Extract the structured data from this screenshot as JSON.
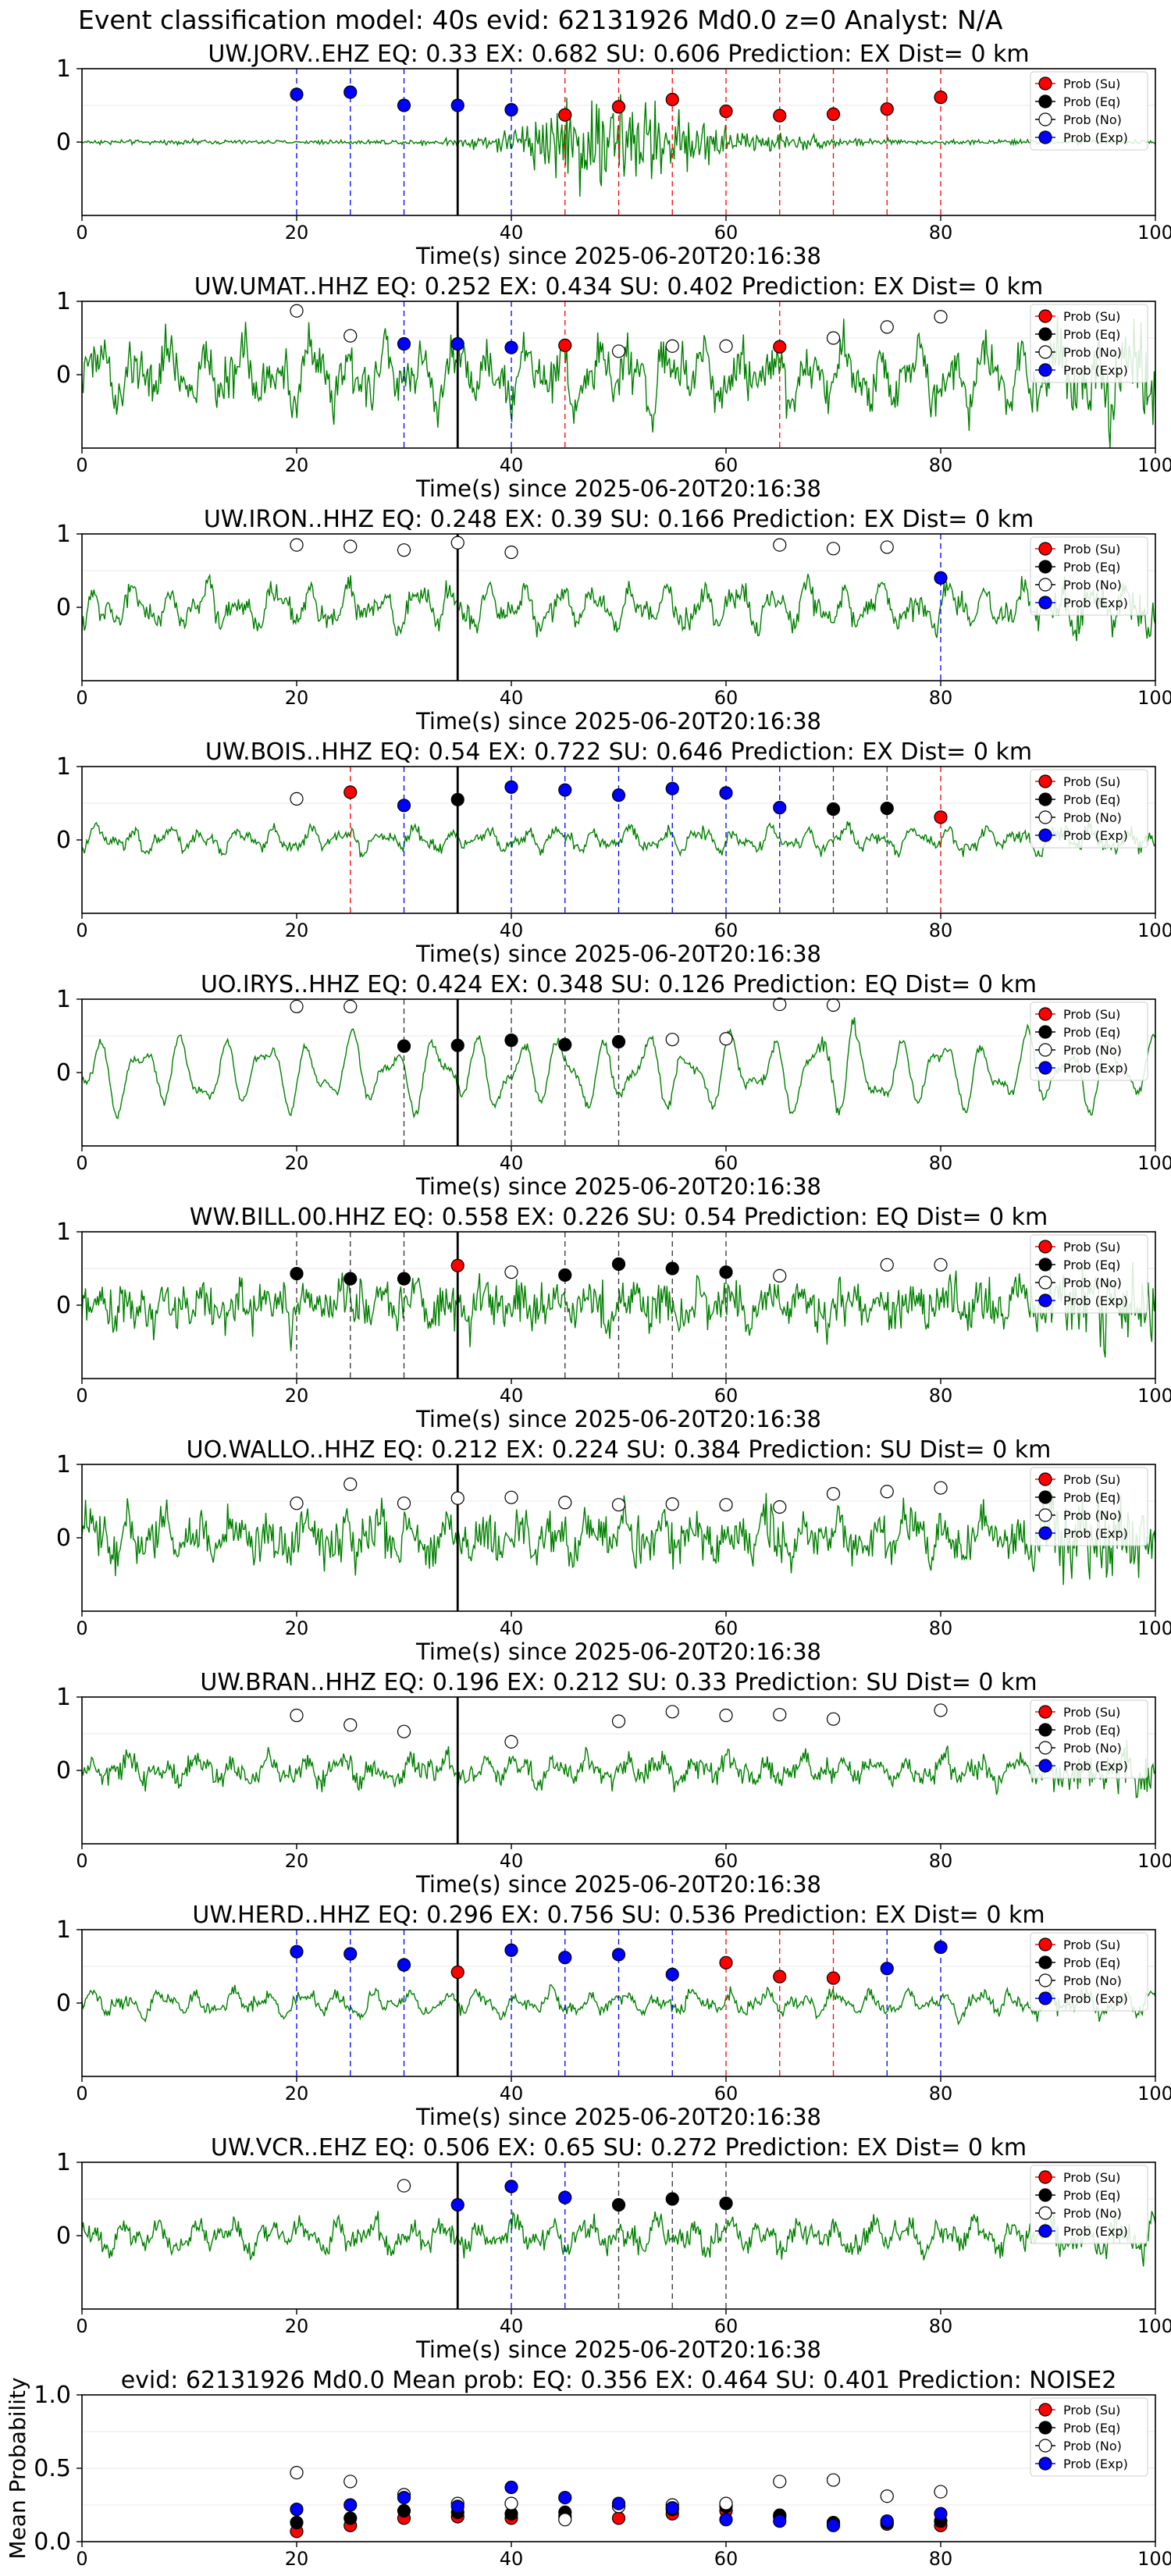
{
  "suptitle": "Event classification model: 40s evid: 62131926 Md0.0 z=0 Analyst: N/A",
  "xlabel_text": "Time(s) since 2025-06-20T20:16:38",
  "legend_labels": [
    "Prob (Su)",
    "Prob (Eq)",
    "Prob (No)",
    "Prob (Exp)"
  ],
  "colors": {
    "su": "#ff0000",
    "eq": "#000000",
    "no": "#ffffff",
    "exp": "#0000ff",
    "trace": "#008000",
    "mean_ylabel": "Mean Probability"
  },
  "chart_data": [
    {
      "type": "line",
      "title": "UW.JORV..EHZ   EQ: 0.33  EX: 0.682  SU: 0.606   Prediction: EX    Dist= 0 km",
      "xlabel": "Time(s) since 2025-06-20T20:16:38",
      "ylabel": "",
      "xlim": [
        0,
        100
      ],
      "ylim": [
        -1,
        1
      ],
      "xticks": [
        0,
        20,
        40,
        60,
        80,
        100
      ],
      "yticks": [
        0,
        1
      ],
      "pick_time": 35,
      "waveform": "burst",
      "waveform_amplitude": 1.0,
      "waveform_noise": 0.03,
      "points": [
        {
          "t": 20,
          "p": 0.65,
          "cls": "exp"
        },
        {
          "t": 25,
          "p": 0.68,
          "cls": "exp"
        },
        {
          "t": 30,
          "p": 0.5,
          "cls": "exp"
        },
        {
          "t": 35,
          "p": 0.5,
          "cls": "exp"
        },
        {
          "t": 40,
          "p": 0.44,
          "cls": "exp"
        },
        {
          "t": 45,
          "p": 0.37,
          "cls": "su"
        },
        {
          "t": 50,
          "p": 0.48,
          "cls": "su"
        },
        {
          "t": 55,
          "p": 0.58,
          "cls": "su"
        },
        {
          "t": 60,
          "p": 0.42,
          "cls": "su"
        },
        {
          "t": 65,
          "p": 0.36,
          "cls": "su"
        },
        {
          "t": 70,
          "p": 0.38,
          "cls": "su"
        },
        {
          "t": 75,
          "p": 0.45,
          "cls": "su"
        },
        {
          "t": 80,
          "p": 0.61,
          "cls": "su"
        }
      ]
    },
    {
      "type": "line",
      "title": "UW.UMAT..HHZ   EQ: 0.252  EX: 0.434  SU: 0.402   Prediction: EX    Dist= 0 km",
      "xlabel": "Time(s) since 2025-06-20T20:16:38",
      "ylabel": "",
      "xlim": [
        0,
        100
      ],
      "ylim": [
        -1,
        1
      ],
      "xticks": [
        0,
        20,
        40,
        60,
        80,
        100
      ],
      "yticks": [
        0,
        1
      ],
      "pick_time": 35,
      "waveform": "noise",
      "waveform_amplitude": 0.5,
      "waveform_noise": 0.3,
      "points": [
        {
          "t": 20,
          "p": 0.87,
          "cls": "no"
        },
        {
          "t": 25,
          "p": 0.53,
          "cls": "no"
        },
        {
          "t": 30,
          "p": 0.42,
          "cls": "exp"
        },
        {
          "t": 35,
          "p": 0.42,
          "cls": "exp"
        },
        {
          "t": 40,
          "p": 0.37,
          "cls": "exp"
        },
        {
          "t": 45,
          "p": 0.4,
          "cls": "su"
        },
        {
          "t": 50,
          "p": 0.32,
          "cls": "no"
        },
        {
          "t": 55,
          "p": 0.39,
          "cls": "no"
        },
        {
          "t": 60,
          "p": 0.39,
          "cls": "no"
        },
        {
          "t": 65,
          "p": 0.38,
          "cls": "su"
        },
        {
          "t": 70,
          "p": 0.5,
          "cls": "no"
        },
        {
          "t": 75,
          "p": 0.65,
          "cls": "no"
        },
        {
          "t": 80,
          "p": 0.79,
          "cls": "no"
        }
      ]
    },
    {
      "type": "line",
      "title": "UW.IRON..HHZ   EQ: 0.248  EX: 0.39  SU: 0.166   Prediction: EX    Dist= 0 km",
      "xlabel": "Time(s) since 2025-06-20T20:16:38",
      "ylabel": "",
      "xlim": [
        0,
        100
      ],
      "ylim": [
        -1,
        1
      ],
      "xticks": [
        0,
        20,
        40,
        60,
        80,
        100
      ],
      "yticks": [
        0,
        1
      ],
      "pick_time": 35,
      "waveform": "noise",
      "waveform_amplitude": 0.35,
      "waveform_noise": 0.15,
      "points": [
        {
          "t": 20,
          "p": 0.85,
          "cls": "no"
        },
        {
          "t": 25,
          "p": 0.83,
          "cls": "no"
        },
        {
          "t": 30,
          "p": 0.78,
          "cls": "no"
        },
        {
          "t": 35,
          "p": 0.88,
          "cls": "no"
        },
        {
          "t": 40,
          "p": 0.75,
          "cls": "no"
        },
        {
          "t": 65,
          "p": 0.85,
          "cls": "no"
        },
        {
          "t": 70,
          "p": 0.8,
          "cls": "no"
        },
        {
          "t": 75,
          "p": 0.82,
          "cls": "no"
        },
        {
          "t": 80,
          "p": 0.4,
          "cls": "exp"
        }
      ]
    },
    {
      "type": "line",
      "title": "UW.BOIS..HHZ   EQ: 0.54  EX: 0.722  SU: 0.646   Prediction: EX    Dist= 0 km",
      "xlabel": "Time(s) since 2025-06-20T20:16:38",
      "ylabel": "",
      "xlim": [
        0,
        100
      ],
      "ylim": [
        -1,
        1
      ],
      "xticks": [
        0,
        20,
        40,
        60,
        80,
        100
      ],
      "yticks": [
        0,
        1
      ],
      "pick_time": 35,
      "waveform": "noise",
      "waveform_amplitude": 0.2,
      "waveform_noise": 0.08,
      "points": [
        {
          "t": 20,
          "p": 0.56,
          "cls": "no"
        },
        {
          "t": 25,
          "p": 0.65,
          "cls": "su"
        },
        {
          "t": 30,
          "p": 0.47,
          "cls": "exp"
        },
        {
          "t": 35,
          "p": 0.55,
          "cls": "eq"
        },
        {
          "t": 40,
          "p": 0.72,
          "cls": "exp"
        },
        {
          "t": 45,
          "p": 0.68,
          "cls": "exp"
        },
        {
          "t": 50,
          "p": 0.61,
          "cls": "exp"
        },
        {
          "t": 55,
          "p": 0.7,
          "cls": "exp"
        },
        {
          "t": 60,
          "p": 0.64,
          "cls": "exp"
        },
        {
          "t": 65,
          "p": 0.44,
          "cls": "exp"
        },
        {
          "t": 70,
          "p": 0.42,
          "cls": "eq"
        },
        {
          "t": 75,
          "p": 0.43,
          "cls": "eq"
        },
        {
          "t": 80,
          "p": 0.31,
          "cls": "su"
        }
      ]
    },
    {
      "type": "line",
      "title": "UO.IRYS..HHZ   EQ: 0.424  EX: 0.348  SU: 0.126   Prediction: EQ    Dist= 0 km",
      "xlabel": "Time(s) since 2025-06-20T20:16:38",
      "ylabel": "",
      "xlim": [
        0,
        100
      ],
      "ylim": [
        -1,
        1
      ],
      "xticks": [
        0,
        20,
        40,
        60,
        80,
        100
      ],
      "yticks": [
        0,
        1
      ],
      "pick_time": 35,
      "waveform": "oscillation",
      "waveform_amplitude": 0.6,
      "waveform_noise": 0.06,
      "points": [
        {
          "t": 20,
          "p": 0.9,
          "cls": "no"
        },
        {
          "t": 25,
          "p": 0.9,
          "cls": "no"
        },
        {
          "t": 30,
          "p": 0.36,
          "cls": "eq"
        },
        {
          "t": 35,
          "p": 0.37,
          "cls": "eq"
        },
        {
          "t": 40,
          "p": 0.44,
          "cls": "eq"
        },
        {
          "t": 45,
          "p": 0.38,
          "cls": "eq"
        },
        {
          "t": 50,
          "p": 0.42,
          "cls": "eq"
        },
        {
          "t": 55,
          "p": 0.45,
          "cls": "no"
        },
        {
          "t": 60,
          "p": 0.46,
          "cls": "no"
        },
        {
          "t": 65,
          "p": 0.93,
          "cls": "no"
        },
        {
          "t": 70,
          "p": 0.92,
          "cls": "no"
        }
      ]
    },
    {
      "type": "line",
      "title": "WW.BILL.00.HHZ   EQ: 0.558  EX: 0.226  SU: 0.54   Prediction: EQ    Dist= 0 km",
      "xlabel": "Time(s) since 2025-06-20T20:16:38",
      "ylabel": "",
      "xlim": [
        0,
        100
      ],
      "ylim": [
        -1,
        1
      ],
      "xticks": [
        0,
        20,
        40,
        60,
        80,
        100
      ],
      "yticks": [
        0,
        1
      ],
      "pick_time": 35,
      "waveform": "noise",
      "waveform_amplitude": 0.25,
      "waveform_noise": 0.3,
      "points": [
        {
          "t": 20,
          "p": 0.43,
          "cls": "eq"
        },
        {
          "t": 25,
          "p": 0.36,
          "cls": "eq"
        },
        {
          "t": 30,
          "p": 0.36,
          "cls": "eq"
        },
        {
          "t": 35,
          "p": 0.54,
          "cls": "su"
        },
        {
          "t": 40,
          "p": 0.45,
          "cls": "no"
        },
        {
          "t": 45,
          "p": 0.41,
          "cls": "eq"
        },
        {
          "t": 50,
          "p": 0.56,
          "cls": "eq"
        },
        {
          "t": 55,
          "p": 0.5,
          "cls": "eq"
        },
        {
          "t": 60,
          "p": 0.45,
          "cls": "eq"
        },
        {
          "t": 65,
          "p": 0.4,
          "cls": "no"
        },
        {
          "t": 75,
          "p": 0.55,
          "cls": "no"
        },
        {
          "t": 80,
          "p": 0.55,
          "cls": "no"
        }
      ]
    },
    {
      "type": "line",
      "title": "UO.WALLO..HHZ   EQ: 0.212  EX: 0.224  SU: 0.384   Prediction: SU    Dist= 0 km",
      "xlabel": "Time(s) since 2025-06-20T20:16:38",
      "ylabel": "",
      "xlim": [
        0,
        100
      ],
      "ylim": [
        -1,
        1
      ],
      "xticks": [
        0,
        20,
        40,
        60,
        80,
        100
      ],
      "yticks": [
        0,
        1
      ],
      "pick_time": 35,
      "waveform": "noise",
      "waveform_amplitude": 0.3,
      "waveform_noise": 0.3,
      "points": [
        {
          "t": 20,
          "p": 0.47,
          "cls": "no"
        },
        {
          "t": 25,
          "p": 0.73,
          "cls": "no"
        },
        {
          "t": 30,
          "p": 0.47,
          "cls": "no"
        },
        {
          "t": 35,
          "p": 0.54,
          "cls": "no"
        },
        {
          "t": 40,
          "p": 0.55,
          "cls": "no"
        },
        {
          "t": 45,
          "p": 0.48,
          "cls": "no"
        },
        {
          "t": 50,
          "p": 0.45,
          "cls": "no"
        },
        {
          "t": 55,
          "p": 0.46,
          "cls": "no"
        },
        {
          "t": 60,
          "p": 0.45,
          "cls": "no"
        },
        {
          "t": 65,
          "p": 0.42,
          "cls": "no"
        },
        {
          "t": 70,
          "p": 0.6,
          "cls": "no"
        },
        {
          "t": 75,
          "p": 0.63,
          "cls": "no"
        },
        {
          "t": 80,
          "p": 0.68,
          "cls": "no"
        }
      ]
    },
    {
      "type": "line",
      "title": "UW.BRAN..HHZ   EQ: 0.196  EX: 0.212  SU: 0.33   Prediction: SU    Dist= 0 km",
      "xlabel": "Time(s) since 2025-06-20T20:16:38",
      "ylabel": "",
      "xlim": [
        0,
        100
      ],
      "ylim": [
        -1,
        1
      ],
      "xticks": [
        0,
        20,
        40,
        60,
        80,
        100
      ],
      "yticks": [
        0,
        1
      ],
      "pick_time": 35,
      "waveform": "noise",
      "waveform_amplitude": 0.2,
      "waveform_noise": 0.15,
      "points": [
        {
          "t": 20,
          "p": 0.75,
          "cls": "no"
        },
        {
          "t": 25,
          "p": 0.62,
          "cls": "no"
        },
        {
          "t": 30,
          "p": 0.53,
          "cls": "no"
        },
        {
          "t": 40,
          "p": 0.39,
          "cls": "no"
        },
        {
          "t": 50,
          "p": 0.67,
          "cls": "no"
        },
        {
          "t": 55,
          "p": 0.8,
          "cls": "no"
        },
        {
          "t": 60,
          "p": 0.75,
          "cls": "no"
        },
        {
          "t": 65,
          "p": 0.76,
          "cls": "no"
        },
        {
          "t": 70,
          "p": 0.7,
          "cls": "no"
        },
        {
          "t": 80,
          "p": 0.82,
          "cls": "no"
        }
      ]
    },
    {
      "type": "line",
      "title": "UW.HERD..HHZ   EQ: 0.296  EX: 0.756  SU: 0.536   Prediction: EX    Dist= 0 km",
      "xlabel": "Time(s) since 2025-06-20T20:16:38",
      "ylabel": "",
      "xlim": [
        0,
        100
      ],
      "ylim": [
        -1,
        1
      ],
      "xticks": [
        0,
        20,
        40,
        60,
        80,
        100
      ],
      "yticks": [
        0,
        1
      ],
      "pick_time": 35,
      "waveform": "noise",
      "waveform_amplitude": 0.2,
      "waveform_noise": 0.08,
      "points": [
        {
          "t": 20,
          "p": 0.7,
          "cls": "exp"
        },
        {
          "t": 25,
          "p": 0.67,
          "cls": "exp"
        },
        {
          "t": 30,
          "p": 0.52,
          "cls": "exp"
        },
        {
          "t": 35,
          "p": 0.42,
          "cls": "su"
        },
        {
          "t": 40,
          "p": 0.72,
          "cls": "exp"
        },
        {
          "t": 45,
          "p": 0.62,
          "cls": "exp"
        },
        {
          "t": 50,
          "p": 0.66,
          "cls": "exp"
        },
        {
          "t": 55,
          "p": 0.39,
          "cls": "exp"
        },
        {
          "t": 60,
          "p": 0.55,
          "cls": "su"
        },
        {
          "t": 65,
          "p": 0.36,
          "cls": "su"
        },
        {
          "t": 70,
          "p": 0.34,
          "cls": "su"
        },
        {
          "t": 75,
          "p": 0.47,
          "cls": "exp"
        },
        {
          "t": 80,
          "p": 0.76,
          "cls": "exp"
        }
      ]
    },
    {
      "type": "line",
      "title": "UW.VCR..EHZ   EQ: 0.506  EX: 0.65  SU: 0.272   Prediction: EX    Dist= 0 km",
      "xlabel": "Time(s) since 2025-06-20T20:16:38",
      "ylabel": "",
      "xlim": [
        0,
        100
      ],
      "ylim": [
        -1,
        1
      ],
      "xticks": [
        0,
        20,
        40,
        60,
        80,
        100
      ],
      "yticks": [
        0,
        1
      ],
      "pick_time": 35,
      "waveform": "noise",
      "waveform_amplitude": 0.25,
      "waveform_noise": 0.15,
      "points": [
        {
          "t": 30,
          "p": 0.68,
          "cls": "no"
        },
        {
          "t": 35,
          "p": 0.42,
          "cls": "exp"
        },
        {
          "t": 40,
          "p": 0.67,
          "cls": "exp"
        },
        {
          "t": 45,
          "p": 0.52,
          "cls": "exp"
        },
        {
          "t": 50,
          "p": 0.42,
          "cls": "eq"
        },
        {
          "t": 55,
          "p": 0.5,
          "cls": "eq"
        },
        {
          "t": 60,
          "p": 0.44,
          "cls": "eq"
        }
      ]
    },
    {
      "type": "scatter",
      "title": "evid: 62131926  Md0.0   Mean prob:   EQ: 0.356  EX: 0.464  SU: 0.401   Prediction: NOISE2",
      "xlabel": "",
      "ylabel": "Mean Probability",
      "xlim": [
        0,
        100
      ],
      "ylim": [
        0,
        1
      ],
      "xticks": [
        0,
        20,
        40,
        60,
        80,
        100
      ],
      "yticks": [
        0.0,
        0.5,
        1.0
      ],
      "ytick_labels": [
        "0.0",
        "0.5",
        "1.0"
      ],
      "series": [
        {
          "name": "Prob (Su)",
          "cls": "su",
          "x": [
            20,
            25,
            30,
            35,
            40,
            45,
            50,
            55,
            60,
            65,
            70,
            75,
            80
          ],
          "y": [
            0.07,
            0.11,
            0.16,
            0.17,
            0.16,
            0.17,
            0.16,
            0.19,
            0.21,
            0.17,
            0.12,
            0.12,
            0.11
          ]
        },
        {
          "name": "Prob (Eq)",
          "cls": "eq",
          "x": [
            20,
            25,
            30,
            35,
            40,
            45,
            50,
            55,
            60,
            65,
            70,
            75,
            80
          ],
          "y": [
            0.13,
            0.16,
            0.21,
            0.2,
            0.19,
            0.2,
            0.24,
            0.22,
            0.24,
            0.18,
            0.13,
            0.13,
            0.14
          ]
        },
        {
          "name": "Prob (No)",
          "cls": "no",
          "x": [
            20,
            25,
            30,
            35,
            40,
            45,
            50,
            55,
            60,
            65,
            70,
            75,
            80
          ],
          "y": [
            0.47,
            0.41,
            0.32,
            0.26,
            0.26,
            0.15,
            0.24,
            0.25,
            0.26,
            0.41,
            0.42,
            0.31,
            0.34
          ]
        },
        {
          "name": "Prob (Exp)",
          "cls": "exp",
          "x": [
            20,
            25,
            30,
            35,
            40,
            45,
            50,
            55,
            60,
            65,
            70,
            75,
            80
          ],
          "y": [
            0.22,
            0.25,
            0.3,
            0.24,
            0.37,
            0.3,
            0.26,
            0.23,
            0.15,
            0.14,
            0.11,
            0.14,
            0.19
          ]
        }
      ]
    }
  ]
}
